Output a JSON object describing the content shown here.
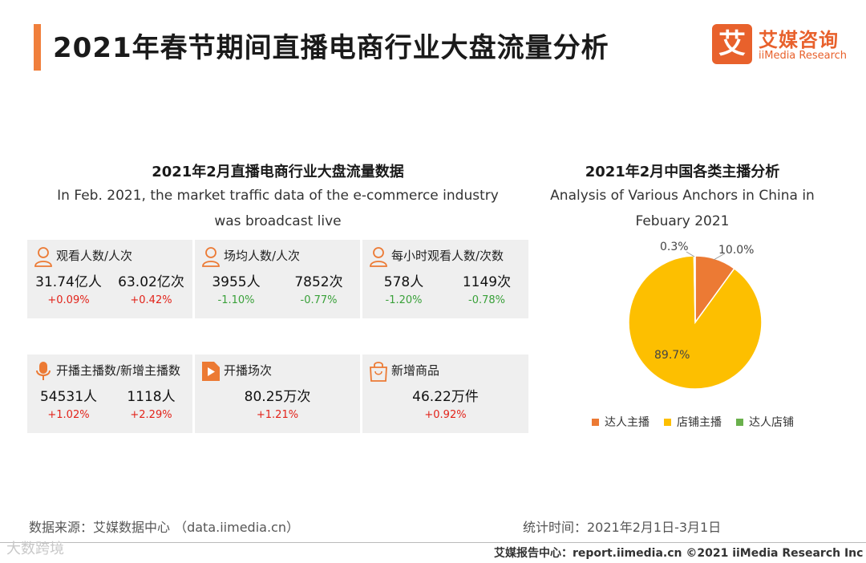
{
  "header": {
    "title": "2021年春节期间直播电商行业大盘流量分析",
    "logo_mark": "艾",
    "logo_cn": "艾媒咨询",
    "logo_en": "iiMedia Research"
  },
  "left_section": {
    "title": "2021年2月直播电商行业大盘流量数据",
    "subtitle_line1": "In Feb. 2021, the market traffic data of the e-commerce industry",
    "subtitle_line2": "was broadcast live"
  },
  "cards": [
    {
      "label": "观看人数/人次",
      "icon": "person-icon",
      "values": [
        "31.74亿人",
        "63.02亿次"
      ],
      "changes": [
        "+0.09%",
        "+0.42%"
      ]
    },
    {
      "label": "场均人数/人次",
      "icon": "person-icon",
      "values": [
        "3955人",
        "7852次"
      ],
      "changes": [
        "-1.10%",
        "-0.77%"
      ]
    },
    {
      "label": "每小时观看人数/次数",
      "icon": "person-icon",
      "values": [
        "578人",
        "1149次"
      ],
      "changes": [
        "-1.20%",
        "-0.78%"
      ]
    },
    {
      "label": "开播主播数/新增主播数",
      "icon": "microphone-icon",
      "values": [
        "54531人",
        "1118人"
      ],
      "changes": [
        "+1.02%",
        "+2.29%"
      ]
    },
    {
      "label": "开播场次",
      "icon": "play-icon",
      "values": [
        "80.25万次"
      ],
      "changes": [
        "+1.21%"
      ]
    },
    {
      "label": "新增商品",
      "icon": "shopping-bag-icon",
      "values": [
        "46.22万件"
      ],
      "changes": [
        "+0.92%"
      ]
    }
  ],
  "chart_data": {
    "type": "pie",
    "title": "2021年2月中国各类主播分析",
    "subtitle_line1": "Analysis of Various Anchors in China in",
    "subtitle_line2": "Febuary 2021",
    "categories": [
      "达人主播",
      "店铺主播",
      "达人店铺"
    ],
    "values": [
      10.0,
      89.7,
      0.3
    ],
    "labels": [
      "10.0%",
      "89.7%",
      "0.3%"
    ],
    "colors": [
      "#ec7a34",
      "#fdbf00",
      "#6ab04c"
    ],
    "legend_position": "bottom"
  },
  "footer": {
    "source": "数据来源：艾媒数据中心 （data.iimedia.cn）",
    "time": "统计时间：2021年2月1日-3月1日",
    "watermark": "大数跨境",
    "report": "艾媒报告中心：report.iimedia.cn  ©2021  iiMedia Research  Inc"
  },
  "colors": {
    "accent": "#f07f3c",
    "up": "#e2231a",
    "down": "#3aa13a"
  }
}
